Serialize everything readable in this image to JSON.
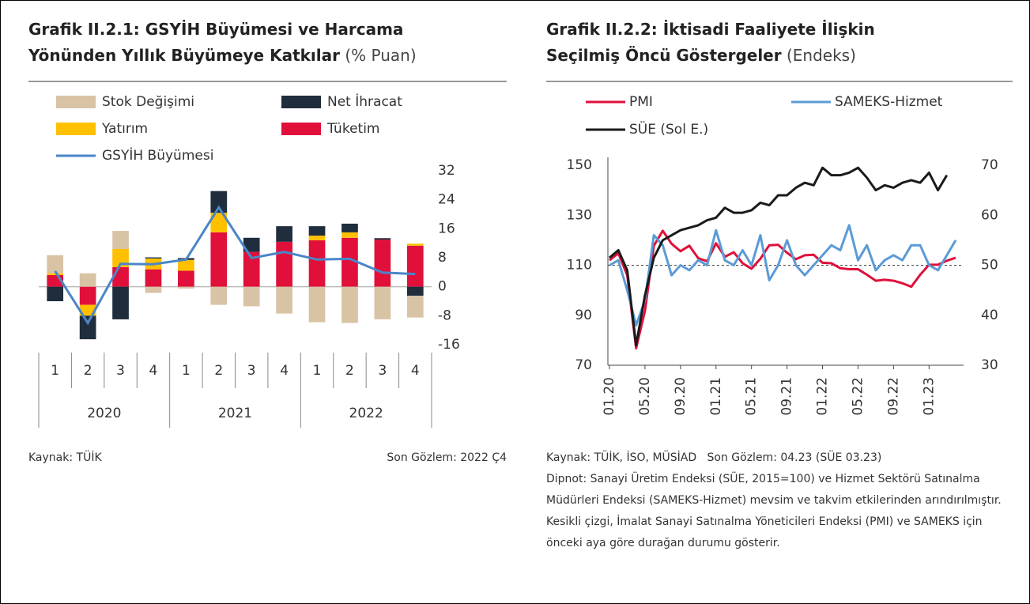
{
  "chart_data": [
    {
      "type": "bar",
      "title": "Grafik II.2.1: GSYİH Büyümesi ve Harcama Yönünden Yıllık Büyümeye Katkılar",
      "subtitle": "(% Puan)",
      "categories": [
        "1",
        "2",
        "3",
        "4",
        "1",
        "2",
        "3",
        "4",
        "1",
        "2",
        "3",
        "4"
      ],
      "year_labels": [
        "2020",
        "2021",
        "2022"
      ],
      "series": [
        {
          "name": "Stok Değişimi",
          "color": "#d9c3a5",
          "values": [
            5,
            3.7,
            5,
            -1.7,
            -0.5,
            -5,
            -5.4,
            -7.4,
            -9.8,
            -10,
            -9,
            -6
          ]
        },
        {
          "name": "Net İhracat",
          "color": "#1f2d3d",
          "values": [
            -4,
            -6.5,
            -9,
            0.3,
            0.5,
            6,
            3.9,
            4.3,
            2.6,
            2.4,
            0.4,
            -2.5
          ]
        },
        {
          "name": "Yatırım",
          "color": "#ffc000",
          "values": [
            0.5,
            -3,
            5,
            3,
            3,
            5.4,
            0,
            0,
            1.3,
            1.5,
            0,
            0.6
          ]
        },
        {
          "name": "Tüketim",
          "color": "#e0103b",
          "values": [
            3.2,
            -5,
            5.4,
            4.8,
            4.4,
            15,
            9.6,
            12.4,
            12.8,
            13.5,
            13,
            11.3
          ]
        },
        {
          "name": "GSYİH Büyümesi",
          "type": "line",
          "color": "#4a86c8",
          "values": [
            4.3,
            -10,
            6.3,
            6.2,
            7.5,
            21.9,
            7.9,
            9.6,
            7.5,
            7.7,
            3.9,
            3.5
          ]
        }
      ],
      "ylim": [
        -16,
        32
      ],
      "yticks": [
        32,
        24,
        16,
        8,
        0,
        -8,
        -16
      ],
      "grid": false,
      "source": "Kaynak: TÜİK",
      "last_obs": "Son Gözlem: 2022 Ç4"
    },
    {
      "type": "line",
      "title": "Grafik II.2.2: İktisadi Faaliyete İlişkin Seçilmiş Öncü Göstergeler",
      "subtitle": "(Endeks)",
      "categories": [
        "01.20",
        null,
        null,
        null,
        "05.20",
        null,
        null,
        null,
        "09.20",
        null,
        null,
        null,
        "01.21",
        null,
        null,
        null,
        "05.21",
        null,
        null,
        null,
        "09.21",
        null,
        null,
        null,
        "01.22",
        null,
        null,
        null,
        "05.22",
        null,
        null,
        null,
        "09.22",
        null,
        null,
        null,
        "01.23",
        null,
        null,
        null
      ],
      "series": [
        {
          "name": "PMI",
          "color": "#e0103b",
          "axis": "y2",
          "values": [
            51,
            52.4,
            48,
            33.4,
            40.9,
            53.9,
            56.9,
            54.3,
            52.8,
            53.9,
            51.4,
            50.8,
            54.4,
            51.7,
            52.6,
            50.4,
            49.3,
            51.3,
            54,
            54.1,
            52.5,
            51.2,
            52,
            52.1,
            50.5,
            50.4,
            49.4,
            49.2,
            49.2,
            48.1,
            46.9,
            47.1,
            46.9,
            46.4,
            45.7,
            48.1,
            50.1,
            50.1,
            50.9,
            51.5
          ]
        },
        {
          "name": "SAMEKS-Hizmet",
          "color": "#5b9bd5",
          "axis": "y2",
          "values": [
            50,
            51,
            45,
            38,
            43,
            56,
            54,
            48,
            50,
            49,
            51,
            50,
            57,
            51,
            50,
            53,
            50,
            56,
            47,
            50,
            55,
            50,
            48,
            50,
            52,
            54,
            53,
            58,
            51,
            54,
            49,
            51,
            52,
            51,
            54,
            54,
            50,
            49,
            52,
            55
          ]
        },
        {
          "name": "SÜE (Sol E.)",
          "color": "#1a1a1a",
          "values": [
            113,
            116,
            108,
            78,
            98,
            113,
            120,
            122,
            124,
            125,
            126,
            128,
            129,
            133,
            131,
            131,
            132,
            135,
            134,
            138,
            138,
            141,
            143,
            142,
            149,
            146,
            146,
            147,
            149,
            145,
            140,
            142,
            141,
            143,
            144,
            143,
            147,
            140,
            146,
            null
          ]
        }
      ],
      "ylim": [
        70,
        150
      ],
      "yticks": [
        70,
        90,
        110,
        130,
        150
      ],
      "y2lim": [
        30,
        70
      ],
      "y2ticks": [
        30,
        40,
        50,
        60,
        70
      ],
      "hline": 110,
      "source": "Kaynak: TÜİK, İSO, MÜSİAD   Son Gözlem: 04.23 (SÜE 03.23)",
      "note": "Dipnot: Sanayi Üretim Endeksi (SÜE, 2015=100) ve Hizmet Sektörü Satınalma Müdürleri Endeksi (SAMEKS-Hizmet) mevsim ve takvim etkilerinden arındırılmıştır. Kesikli çizgi, İmalat Sanayi Satınalma Yöneticileri Endeksi (PMI) ve SAMEKS için önceki aya göre durağan durumu gösterir."
    }
  ]
}
